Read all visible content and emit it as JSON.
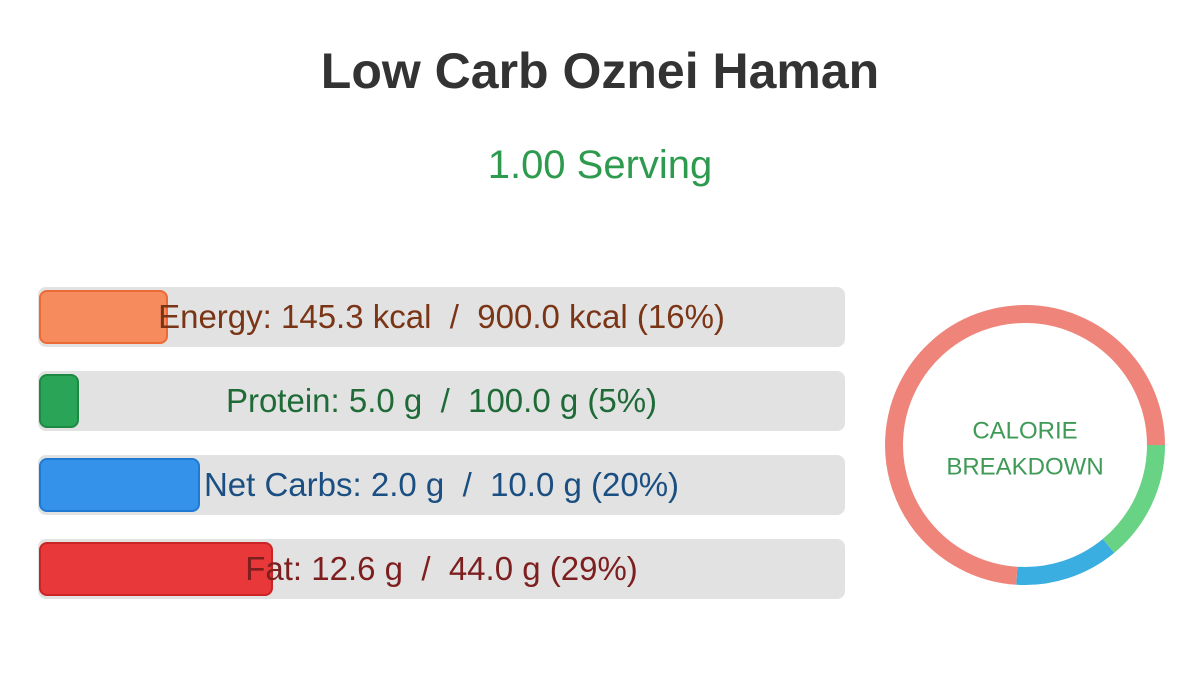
{
  "header": {
    "title": "Low Carb Oznei Haman",
    "serving": "1.00 Serving"
  },
  "bars": [
    {
      "text": "Energy: 145.3 kcal  /  900.0 kcal (16%)",
      "percent": 16,
      "fill": "#f68c5e",
      "border": "#ec6a33",
      "text_color": "#7a3516"
    },
    {
      "text": "Protein: 5.0 g  /  100.0 g (5%)",
      "percent": 5,
      "fill": "#2aa457",
      "border": "#1d8a44",
      "text_color": "#1e6b37"
    },
    {
      "text": "Net Carbs: 2.0 g  /  10.0 g (20%)",
      "percent": 20,
      "fill": "#3592ea",
      "border": "#1f7ad4",
      "text_color": "#1b4f82"
    },
    {
      "text": "Fat: 12.6 g  /  44.0 g (29%)",
      "percent": 29,
      "fill": "#e8383a",
      "border": "#c92426",
      "text_color": "#7d1f1f"
    }
  ],
  "donut": {
    "label_lines": [
      "CALORIE",
      "BREAKDOWN"
    ],
    "segments": [
      {
        "value": 14,
        "color": "#68d285"
      },
      {
        "value": 12,
        "color": "#3aaee0"
      },
      {
        "value": 74,
        "color": "#ef857a"
      }
    ]
  }
}
